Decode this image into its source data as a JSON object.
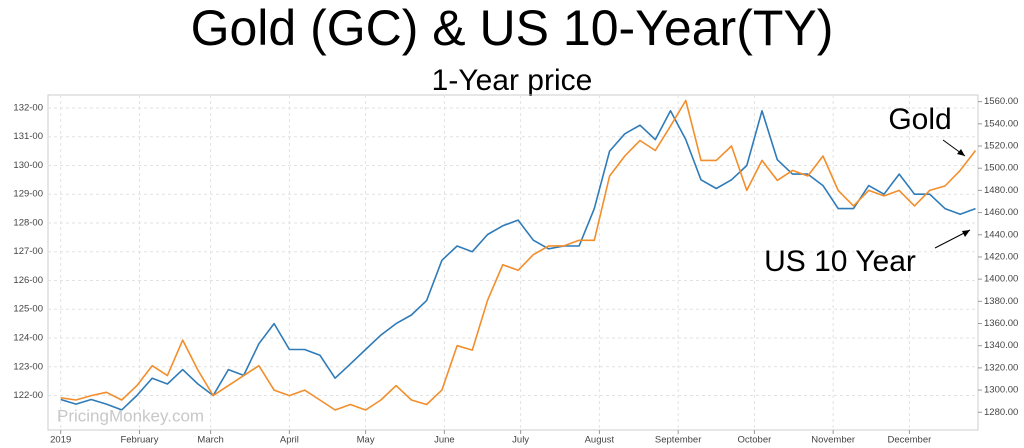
{
  "chart_data": {
    "type": "line",
    "title": "Gold (GC) & US 10-Year(TY)",
    "subtitle": "1-Year price",
    "watermark": "PricingMonkey.com",
    "xlim": [
      -5,
      361
    ],
    "xticks": [
      {
        "value": 0,
        "label": "2019"
      },
      {
        "value": 31,
        "label": "February"
      },
      {
        "value": 59,
        "label": "March"
      },
      {
        "value": 90,
        "label": "April"
      },
      {
        "value": 120,
        "label": "May"
      },
      {
        "value": 151,
        "label": "June"
      },
      {
        "value": 181,
        "label": "July"
      },
      {
        "value": 212,
        "label": "August"
      },
      {
        "value": 243,
        "label": "September"
      },
      {
        "value": 273,
        "label": "October"
      },
      {
        "value": 304,
        "label": "November"
      },
      {
        "value": 334,
        "label": "December"
      }
    ],
    "ylim": [
      120.8,
      132.45
    ],
    "yticks": [
      {
        "value": 122,
        "label": "122-00"
      },
      {
        "value": 123,
        "label": "123-00"
      },
      {
        "value": 124,
        "label": "124-00"
      },
      {
        "value": 125,
        "label": "125-00"
      },
      {
        "value": 126,
        "label": "126-00"
      },
      {
        "value": 127,
        "label": "127-00"
      },
      {
        "value": 128,
        "label": "128-00"
      },
      {
        "value": 129,
        "label": "129-00"
      },
      {
        "value": 130,
        "label": "130-00"
      },
      {
        "value": 131,
        "label": "131-00"
      },
      {
        "value": 132,
        "label": "132-00"
      }
    ],
    "y2lim": [
      1264,
      1566
    ],
    "y2ticks": [
      {
        "value": 1280,
        "label": "1280.00"
      },
      {
        "value": 1300,
        "label": "1300.00"
      },
      {
        "value": 1320,
        "label": "1320.00"
      },
      {
        "value": 1340,
        "label": "1340.00"
      },
      {
        "value": 1360,
        "label": "1360.00"
      },
      {
        "value": 1380,
        "label": "1380.00"
      },
      {
        "value": 1400,
        "label": "1400.00"
      },
      {
        "value": 1420,
        "label": "1420.00"
      },
      {
        "value": 1440,
        "label": "1440.00"
      },
      {
        "value": 1460,
        "label": "1460.00"
      },
      {
        "value": 1480,
        "label": "1480.00"
      },
      {
        "value": 1500,
        "label": "1500.00"
      },
      {
        "value": 1520,
        "label": "1520.00"
      },
      {
        "value": 1540,
        "label": "1540.00"
      },
      {
        "value": 1560,
        "label": "1560.00"
      }
    ],
    "grid": true,
    "x": [
      0,
      6,
      12,
      18,
      24,
      30,
      36,
      42,
      48,
      54,
      60,
      66,
      72,
      78,
      84,
      90,
      96,
      102,
      108,
      114,
      120,
      126,
      132,
      138,
      144,
      150,
      156,
      162,
      168,
      174,
      180,
      186,
      192,
      198,
      204,
      210,
      216,
      222,
      228,
      234,
      240,
      246,
      252,
      258,
      264,
      270,
      276,
      282,
      288,
      294,
      300,
      306,
      312,
      318,
      324,
      330,
      336,
      342,
      348,
      354,
      360
    ],
    "series": [
      {
        "name": "US 10 Year",
        "color": "#2f7bb8",
        "axis": "y",
        "values": [
          121.86,
          121.7,
          121.86,
          121.7,
          121.5,
          122.0,
          122.6,
          122.4,
          122.9,
          122.4,
          122.0,
          122.9,
          122.7,
          123.8,
          124.5,
          123.6,
          123.6,
          123.4,
          122.6,
          123.1,
          123.6,
          124.1,
          124.5,
          124.8,
          125.3,
          126.7,
          127.2,
          127.0,
          127.6,
          127.9,
          128.1,
          127.4,
          127.1,
          127.2,
          127.2,
          128.5,
          130.5,
          131.1,
          131.4,
          130.9,
          131.9,
          130.9,
          129.5,
          129.2,
          129.5,
          130.0,
          131.9,
          130.2,
          129.7,
          129.7,
          129.3,
          128.5,
          128.5,
          129.3,
          129.0,
          129.7,
          129.0,
          129.0,
          128.5,
          128.3,
          128.5
        ]
      },
      {
        "name": "Gold",
        "color": "#f28e2b",
        "axis": "y2",
        "values": [
          1293,
          1291,
          1295,
          1298,
          1291,
          1304,
          1322,
          1313,
          1345,
          1318,
          1295,
          1304,
          1313,
          1322,
          1300,
          1295,
          1300,
          1291,
          1282,
          1287,
          1282,
          1291,
          1304,
          1291,
          1287,
          1300,
          1340,
          1336,
          1381,
          1413,
          1408,
          1422,
          1430,
          1430,
          1435,
          1435,
          1493,
          1511,
          1525,
          1516,
          1538,
          1561,
          1507,
          1507,
          1520,
          1480,
          1507,
          1489,
          1498,
          1493,
          1511,
          1480,
          1466,
          1480,
          1475,
          1480,
          1466,
          1480,
          1484,
          1498,
          1516
        ]
      }
    ]
  }
}
